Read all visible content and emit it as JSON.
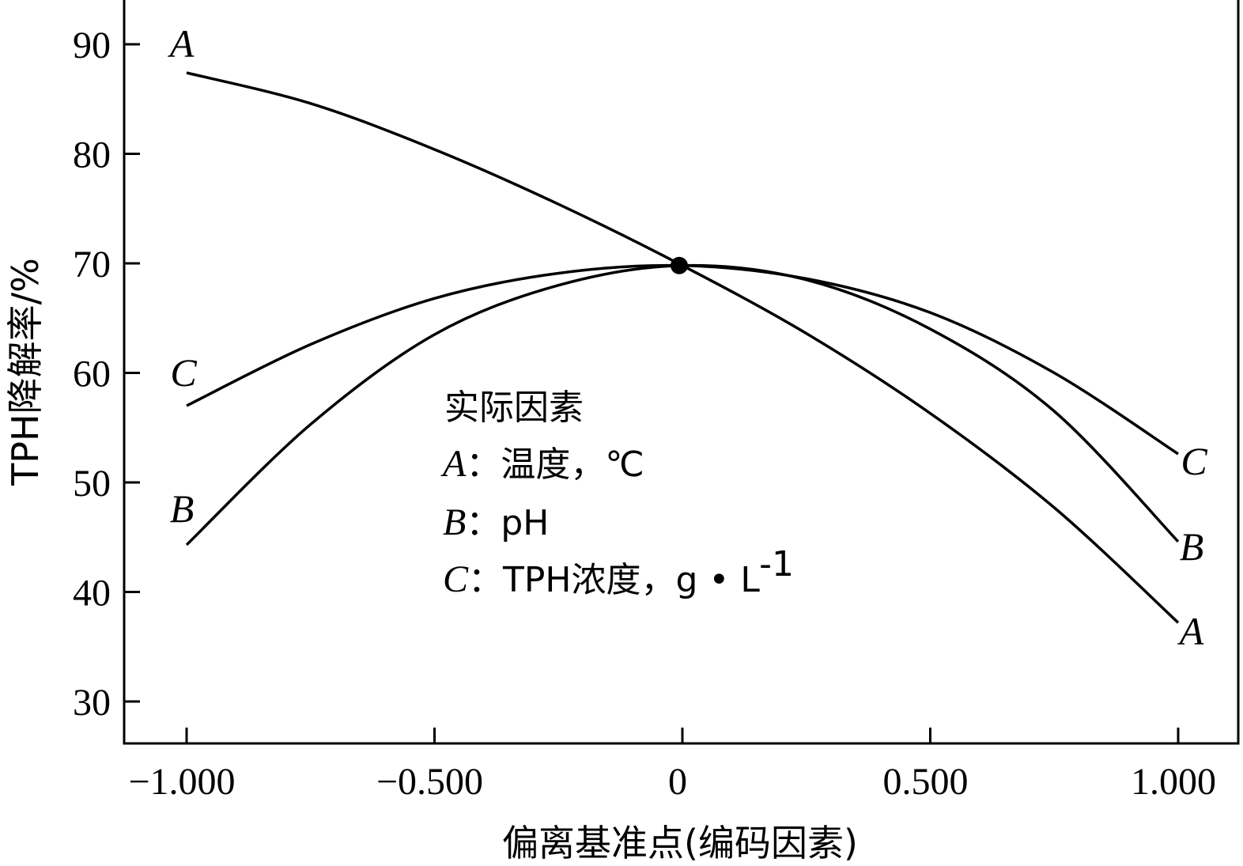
{
  "chart_data": {
    "type": "line",
    "xlabel": "偏离基准点(编码因素)",
    "ylabel": "TPH降解率/%",
    "xlim": [
      -1.125,
      1.125
    ],
    "ylim": [
      26,
      94
    ],
    "xticks": [
      -1.0,
      -0.5,
      0,
      0.5,
      1.0
    ],
    "xtick_labels": [
      "−1.000",
      "−0.500",
      "0",
      "0.500",
      "1.000"
    ],
    "yticks": [
      30,
      40,
      50,
      60,
      70,
      80,
      90
    ],
    "ytick_labels": [
      "30",
      "40",
      "50",
      "60",
      "70",
      "80",
      "90"
    ],
    "center_point": {
      "x": 0,
      "y": 69.8
    },
    "series": [
      {
        "name": "A",
        "x": [
          -1.0,
          -0.75,
          -0.5,
          -0.25,
          0,
          0.25,
          0.5,
          0.75,
          1.0
        ],
        "y": [
          87.4,
          84.6,
          80.4,
          75.4,
          69.8,
          63.6,
          56.3,
          47.7,
          37.2
        ]
      },
      {
        "name": "B",
        "x": [
          -1.0,
          -0.75,
          -0.5,
          -0.25,
          0,
          0.25,
          0.5,
          0.75,
          1.0
        ],
        "y": [
          44.3,
          55.3,
          63.5,
          68.0,
          69.8,
          68.5,
          64.0,
          56.5,
          44.6
        ]
      },
      {
        "name": "C",
        "x": [
          -1.0,
          -0.75,
          -0.5,
          -0.25,
          0,
          0.25,
          0.5,
          0.75,
          1.0
        ],
        "y": [
          57.0,
          62.6,
          66.8,
          69.1,
          69.8,
          68.6,
          65.5,
          60.0,
          52.6
        ]
      }
    ],
    "legend": {
      "title": "实际因素",
      "entries": [
        {
          "key": "A",
          "text": "：温度，℃"
        },
        {
          "key": "B",
          "text": "：pH"
        },
        {
          "key": "C",
          "text": "：TPH浓度，g • L"
        }
      ],
      "superscript": "-1"
    }
  }
}
